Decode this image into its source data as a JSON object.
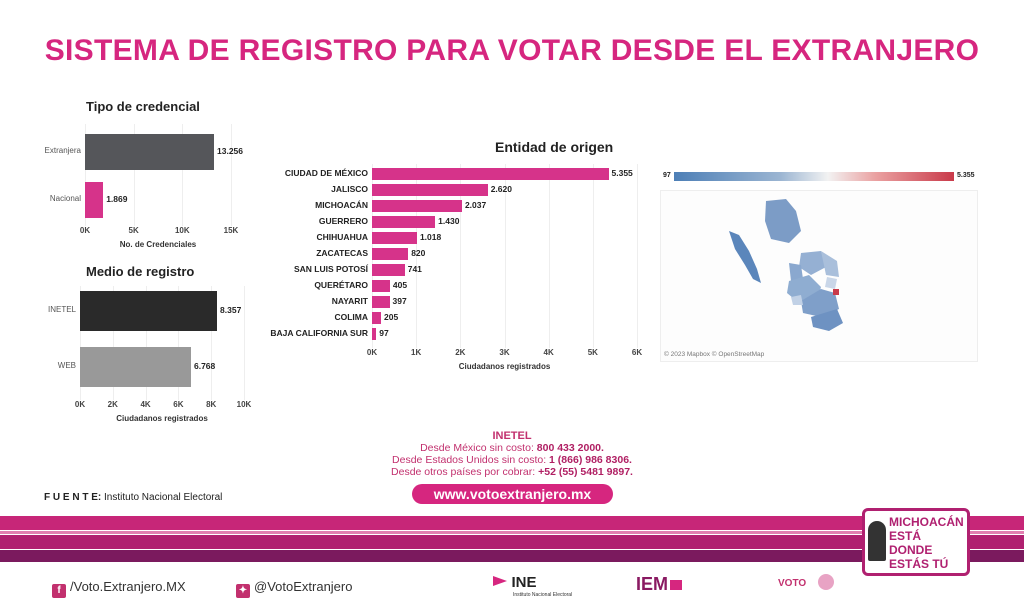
{
  "header": {
    "title": "SISTEMA DE REGISTRO PARA VOTAR DESDE EL EXTRANJERO"
  },
  "credencial_chart": {
    "title": "Tipo de credencial",
    "categories": [
      "Extranjera",
      "Nacional"
    ],
    "values": [
      13256,
      1869
    ],
    "value_labels": [
      "13.256",
      "1.869"
    ],
    "colors": [
      "#55565a",
      "#d6338a"
    ],
    "ticks": [
      "0K",
      "5K",
      "10K",
      "15K"
    ],
    "xlabel": "No. de Credenciales",
    "xlim": [
      0,
      15000
    ]
  },
  "medio_chart": {
    "title": "Medio de registro",
    "categories": [
      "INETEL",
      "WEB"
    ],
    "values": [
      8357,
      6768
    ],
    "value_labels": [
      "8.357",
      "6.768"
    ],
    "colors": [
      "#2a2a2a",
      "#999999"
    ],
    "ticks": [
      "0K",
      "2K",
      "4K",
      "6K",
      "8K",
      "10K"
    ],
    "xlabel": "Ciudadanos registrados",
    "xlim": [
      0,
      10000
    ]
  },
  "entidad_chart": {
    "title": "Entidad de origen",
    "categories": [
      "CIUDAD DE MÉXICO",
      "JALISCO",
      "MICHOACÁN",
      "GUERRERO",
      "CHIHUAHUA",
      "ZACATECAS",
      "SAN LUIS POTOSÍ",
      "QUERÉTARO",
      "NAYARIT",
      "COLIMA",
      "BAJA CALIFORNIA SUR"
    ],
    "values": [
      5355,
      2620,
      2037,
      1430,
      1018,
      820,
      741,
      405,
      397,
      205,
      97
    ],
    "value_labels": [
      "5.355",
      "2.620",
      "2.037",
      "1.430",
      "1.018",
      "820",
      "741",
      "405",
      "397",
      "205",
      "97"
    ],
    "color": "#d6338a",
    "ticks": [
      "0K",
      "1K",
      "2K",
      "3K",
      "4K",
      "5K",
      "6K"
    ],
    "xlabel": "Ciudadanos registrados",
    "xlim": [
      0,
      6000
    ]
  },
  "chart_data": [
    {
      "type": "bar",
      "title": "Tipo de credencial",
      "categories": [
        "Extranjera",
        "Nacional"
      ],
      "values": [
        13256,
        1869
      ],
      "xlabel": "No. de Credenciales",
      "xlim": [
        0,
        15000
      ]
    },
    {
      "type": "bar",
      "title": "Medio de registro",
      "categories": [
        "INETEL",
        "WEB"
      ],
      "values": [
        8357,
        6768
      ],
      "xlabel": "Ciudadanos registrados",
      "xlim": [
        0,
        10000
      ]
    },
    {
      "type": "bar",
      "title": "Entidad de origen",
      "categories": [
        "CIUDAD DE MÉXICO",
        "JALISCO",
        "MICHOACÁN",
        "GUERRERO",
        "CHIHUAHUA",
        "ZACATECAS",
        "SAN LUIS POTOSÍ",
        "QUERÉTARO",
        "NAYARIT",
        "COLIMA",
        "BAJA CALIFORNIA SUR"
      ],
      "values": [
        5355,
        2620,
        2037,
        1430,
        1018,
        820,
        741,
        405,
        397,
        205,
        97
      ],
      "xlabel": "Ciudadanos registrados",
      "xlim": [
        0,
        6000
      ]
    }
  ],
  "map": {
    "legend_min": "97",
    "legend_max": "5.355",
    "attribution": "© 2023 Mapbox © OpenStreetMap"
  },
  "contact": {
    "title": "INETEL",
    "line1_text": "Desde México sin costo: ",
    "line1_number": "800 433 2000.",
    "line2_text": "Desde Estados Unidos sin costo: ",
    "line2_number": "1 (866) 986 8306.",
    "line3_text": "Desde otros países por cobrar: ",
    "line3_number": "+52 (55) 5481 9897.",
    "url": "www.votoextranjero.mx"
  },
  "source": {
    "label": "F U E N T E:",
    "value": " Instituto Nacional Electoral"
  },
  "footer": {
    "facebook": "/Voto.Extranjero.MX",
    "twitter": "@VotoExtranjero",
    "ine_logo": "INE",
    "ine_sub": "Instituto Nacional Electoral",
    "iem_logo": "IEM",
    "voto_logo": "VOTO",
    "badge_line1": "MICHOACÁN",
    "badge_line2": "ESTÁ DONDE",
    "badge_line3": "ESTÁS TÚ"
  },
  "colors": {
    "accent": "#d6267f",
    "stripe_dark": "#b5206a",
    "stripe_light": "#e3559a"
  }
}
